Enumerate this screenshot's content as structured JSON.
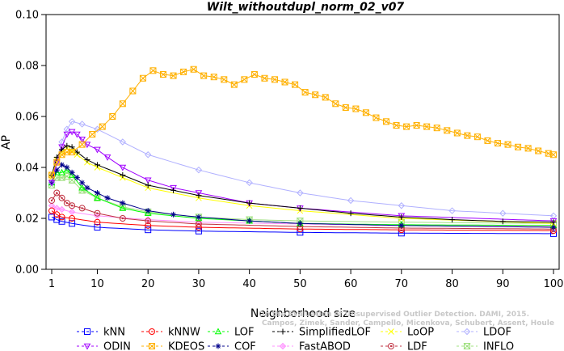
{
  "chart_data": {
    "type": "line",
    "title": "Wilt_withoutdupl_norm_02_v07",
    "xlabel": "Neighborhood size",
    "ylabel": "AP",
    "xlim": [
      1,
      100
    ],
    "ylim": [
      0.0,
      0.1
    ],
    "x_ticks": [
      1,
      10,
      20,
      30,
      40,
      50,
      60,
      70,
      80,
      90,
      100
    ],
    "y_ticks": [
      "0.00",
      "0.02",
      "0.04",
      "0.06",
      "0.08",
      "0.10"
    ],
    "grid": false,
    "legend_position": "bottom",
    "credit": [
      "Campos, Zimek, Sander, Campello, Micenkova, Schubert, Assent, Houle",
      "On the Evaluation of Unsupervised Outlier Detection. DAMI, 2015."
    ],
    "series": [
      {
        "name": "kNN",
        "color": "#0000ff",
        "marker": "square",
        "x": [
          1,
          2,
          3,
          5,
          10,
          20,
          30,
          50,
          70,
          100
        ],
        "y": [
          0.0205,
          0.0195,
          0.0188,
          0.018,
          0.0165,
          0.0155,
          0.015,
          0.0145,
          0.0142,
          0.014
        ]
      },
      {
        "name": "kNNW",
        "color": "#ff0000",
        "marker": "circle",
        "x": [
          1,
          2,
          3,
          5,
          10,
          20,
          30,
          50,
          70,
          100
        ],
        "y": [
          0.023,
          0.0215,
          0.0205,
          0.02,
          0.0185,
          0.0172,
          0.0165,
          0.0158,
          0.0155,
          0.0152
        ]
      },
      {
        "name": "LOF",
        "color": "#00ff00",
        "marker": "triangle-up",
        "x": [
          1,
          2,
          3,
          4,
          5,
          7,
          10,
          15,
          20,
          30,
          40,
          50,
          70,
          100
        ],
        "y": [
          0.034,
          0.038,
          0.038,
          0.039,
          0.037,
          0.032,
          0.028,
          0.024,
          0.022,
          0.02,
          0.019,
          0.018,
          0.0175,
          0.0172
        ]
      },
      {
        "name": "SimplifiedLOF",
        "color": "#000000",
        "marker": "plus",
        "x": [
          1,
          2,
          3,
          4,
          5,
          6,
          8,
          10,
          15,
          20,
          25,
          30,
          40,
          50,
          60,
          70,
          80,
          90,
          100
        ],
        "y": [
          0.037,
          0.044,
          0.047,
          0.0485,
          0.048,
          0.046,
          0.043,
          0.041,
          0.037,
          0.033,
          0.031,
          0.029,
          0.026,
          0.024,
          0.022,
          0.0205,
          0.0195,
          0.0188,
          0.0185
        ]
      },
      {
        "name": "LoOP",
        "color": "#ffff00",
        "marker": "cross",
        "x": [
          1,
          2,
          3,
          4,
          5,
          6,
          8,
          10,
          15,
          20,
          30,
          40,
          50,
          70,
          100
        ],
        "y": [
          0.036,
          0.043,
          0.046,
          0.0475,
          0.0465,
          0.045,
          0.042,
          0.04,
          0.036,
          0.032,
          0.028,
          0.025,
          0.023,
          0.02,
          0.018
        ]
      },
      {
        "name": "LDOF",
        "color": "#b0b0ff",
        "marker": "diamond",
        "x": [
          1,
          2,
          3,
          4,
          5,
          7,
          10,
          15,
          20,
          30,
          40,
          50,
          60,
          70,
          80,
          90,
          100
        ],
        "y": [
          0.034,
          0.042,
          0.05,
          0.055,
          0.058,
          0.057,
          0.055,
          0.05,
          0.045,
          0.039,
          0.034,
          0.03,
          0.027,
          0.025,
          0.023,
          0.022,
          0.021
        ]
      },
      {
        "name": "ODIN",
        "color": "#a000ff",
        "marker": "triangle-down",
        "x": [
          1,
          2,
          3,
          4,
          5,
          6,
          7,
          8,
          10,
          12,
          15,
          20,
          25,
          30,
          40,
          50,
          70,
          100
        ],
        "y": [
          0.034,
          0.042,
          0.048,
          0.053,
          0.054,
          0.053,
          0.051,
          0.049,
          0.047,
          0.044,
          0.04,
          0.035,
          0.032,
          0.03,
          0.026,
          0.024,
          0.021,
          0.019
        ]
      },
      {
        "name": "KDEOS",
        "color": "#ffb000",
        "marker": "square-x",
        "x": [
          1,
          2,
          3,
          4,
          5,
          7,
          9,
          11,
          13,
          15,
          17,
          19,
          21,
          23,
          25,
          27,
          29,
          31,
          33,
          35,
          37,
          39,
          41,
          43,
          45,
          47,
          49,
          51,
          53,
          55,
          57,
          59,
          61,
          63,
          65,
          67,
          69,
          71,
          73,
          75,
          77,
          79,
          81,
          83,
          85,
          87,
          89,
          91,
          93,
          95,
          97,
          99,
          100
        ],
        "y": [
          0.037,
          0.042,
          0.045,
          0.046,
          0.046,
          0.049,
          0.053,
          0.056,
          0.06,
          0.065,
          0.07,
          0.075,
          0.078,
          0.0765,
          0.076,
          0.0775,
          0.0785,
          0.076,
          0.0755,
          0.0745,
          0.0725,
          0.0745,
          0.0765,
          0.075,
          0.0745,
          0.0735,
          0.0725,
          0.0695,
          0.0685,
          0.0675,
          0.065,
          0.0635,
          0.063,
          0.0615,
          0.0595,
          0.058,
          0.0565,
          0.056,
          0.0565,
          0.056,
          0.0555,
          0.0545,
          0.0535,
          0.0525,
          0.052,
          0.0505,
          0.0495,
          0.049,
          0.048,
          0.0475,
          0.0465,
          0.0455,
          0.045
        ]
      },
      {
        "name": "COF",
        "color": "#00008b",
        "marker": "asterisk",
        "x": [
          1,
          2,
          3,
          4,
          5,
          6,
          7,
          8,
          10,
          12,
          15,
          20,
          25,
          30,
          40,
          50,
          70,
          100
        ],
        "y": [
          0.034,
          0.039,
          0.041,
          0.04,
          0.038,
          0.036,
          0.034,
          0.032,
          0.03,
          0.028,
          0.026,
          0.023,
          0.0215,
          0.0205,
          0.019,
          0.018,
          0.0172,
          0.0165
        ]
      },
      {
        "name": "FastABOD",
        "color": "#ff90ff",
        "marker": "diamond-filled",
        "x": [
          1,
          2,
          3,
          5,
          10,
          20,
          30,
          50,
          70,
          100
        ],
        "y": [
          0.025,
          0.024,
          0.0235,
          0.0225,
          0.021,
          0.0195,
          0.0185,
          0.0178,
          0.0172,
          0.0168
        ]
      },
      {
        "name": "LDF",
        "color": "#c03040",
        "marker": "circle-dot",
        "x": [
          1,
          2,
          3,
          4,
          5,
          7,
          10,
          15,
          20,
          30,
          50,
          70,
          100
        ],
        "y": [
          0.027,
          0.03,
          0.028,
          0.026,
          0.025,
          0.024,
          0.022,
          0.02,
          0.019,
          0.0178,
          0.0168,
          0.0162,
          0.0158
        ]
      },
      {
        "name": "INFLO",
        "color": "#a0e080",
        "marker": "hourglass",
        "x": [
          1,
          2,
          3,
          4,
          5,
          7,
          10,
          15,
          20,
          30,
          40,
          50,
          70,
          100
        ],
        "y": [
          0.033,
          0.036,
          0.036,
          0.0365,
          0.035,
          0.031,
          0.028,
          0.0245,
          0.0225,
          0.0205,
          0.0195,
          0.019,
          0.0185,
          0.018
        ]
      }
    ]
  }
}
